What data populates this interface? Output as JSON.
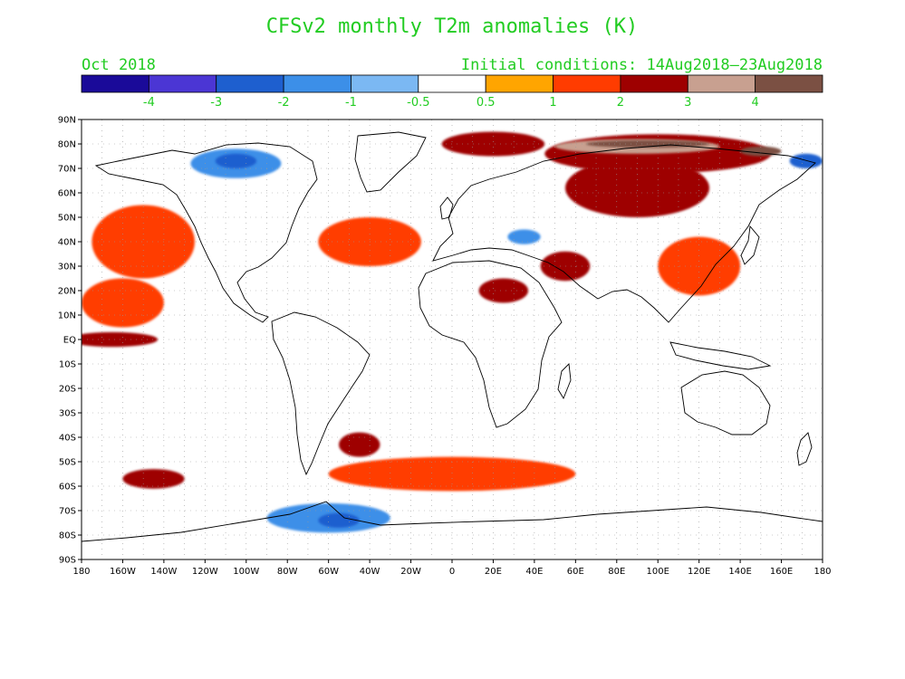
{
  "title": "CFSv2 monthly T2m anomalies (K)",
  "valid_month": "Oct 2018",
  "initial_conditions": "Initial conditions: 14Aug2018–23Aug2018",
  "colorbar": {
    "colors": [
      "#1a0a99",
      "#4b36d4",
      "#1e5fcf",
      "#3c8fe8",
      "#7bb8f3",
      "#ffffff",
      "#ffa500",
      "#ff3c00",
      "#9e0000",
      "#c8a090",
      "#7b5043"
    ],
    "labels": [
      "-4",
      "-3",
      "-2",
      "-1",
      "-0.5",
      "0.5",
      "1",
      "2",
      "3",
      "4"
    ]
  },
  "map": {
    "lat_labels": [
      "90N",
      "80N",
      "70N",
      "60N",
      "50N",
      "40N",
      "30N",
      "20N",
      "10N",
      "EQ",
      "10S",
      "20S",
      "30S",
      "40S",
      "50S",
      "60S",
      "70S",
      "80S",
      "90S"
    ],
    "lon_labels": [
      "180",
      "160W",
      "140W",
      "120W",
      "100W",
      "80W",
      "60W",
      "40W",
      "20W",
      "0",
      "20E",
      "40E",
      "60E",
      "80E",
      "100E",
      "120E",
      "140E",
      "160E",
      "180"
    ]
  },
  "anomaly_regions": [
    {
      "name": "siberia-arctic-warm",
      "level": "2",
      "lon": 100,
      "lat": 76,
      "rlon": 55,
      "rlat": 8
    },
    {
      "name": "arctic-strong-warm",
      "level": "3",
      "lon": 90,
      "lat": 79,
      "rlon": 40,
      "rlat": 3
    },
    {
      "name": "arctic-very-strong-warm",
      "level": "4",
      "lon": 95,
      "lat": 80,
      "rlon": 30,
      "rlat": 1.5
    },
    {
      "name": "east-siberia-very-strong-warm",
      "level": "4",
      "lon": 150,
      "lat": 77,
      "rlon": 10,
      "rlat": 2
    },
    {
      "name": "west-arctic-warm",
      "level": "2",
      "lon": 20,
      "lat": 80,
      "rlon": 25,
      "rlat": 5
    },
    {
      "name": "russia-warm",
      "level": "2",
      "lon": 90,
      "lat": 62,
      "rlon": 35,
      "rlat": 12
    },
    {
      "name": "canada-arctic-cold",
      "level": "-1",
      "lon": -105,
      "lat": 72,
      "rlon": 22,
      "rlat": 6
    },
    {
      "name": "canada-arctic-colder",
      "level": "-2",
      "lon": -105,
      "lat": 73,
      "rlon": 10,
      "rlat": 3
    },
    {
      "name": "bering-cold",
      "level": "-2",
      "lon": 172,
      "lat": 73,
      "rlon": 8,
      "rlat": 3
    },
    {
      "name": "black-sea-cold",
      "level": "-1",
      "lon": 35,
      "lat": 42,
      "rlon": 8,
      "rlat": 3
    },
    {
      "name": "west-pacific-eq-warm",
      "level": "2",
      "lon": -165,
      "lat": 0,
      "rlon": 22,
      "rlat": 3
    },
    {
      "name": "sahara-warm",
      "level": "2",
      "lon": 25,
      "lat": 20,
      "rlon": 12,
      "rlat": 5
    },
    {
      "name": "middle-east-warm",
      "level": "2",
      "lon": 55,
      "lat": 30,
      "rlon": 12,
      "rlat": 6
    },
    {
      "name": "south-atlantic-warm",
      "level": "2",
      "lon": -45,
      "lat": -43,
      "rlon": 10,
      "rlat": 5
    },
    {
      "name": "south-pacific-warm",
      "level": "2",
      "lon": -145,
      "lat": -57,
      "rlon": 15,
      "rlat": 4
    },
    {
      "name": "antarctic-cold",
      "level": "-1",
      "lon": -60,
      "lat": -73,
      "rlon": 30,
      "rlat": 6
    },
    {
      "name": "antarctic-colder",
      "level": "-2",
      "lon": -55,
      "lat": -74,
      "rlon": 10,
      "rlat": 3
    },
    {
      "name": "southern-ocean-warm",
      "level": "1",
      "lon": 0,
      "lat": -55,
      "rlon": 60,
      "rlat": 7
    },
    {
      "name": "north-pacific-warm",
      "level": "1",
      "lon": -150,
      "lat": 40,
      "rlon": 25,
      "rlat": 15
    },
    {
      "name": "north-atlantic-warm",
      "level": "1",
      "lon": -40,
      "lat": 40,
      "rlon": 25,
      "rlat": 10
    },
    {
      "name": "east-asia-warm",
      "level": "1",
      "lon": 120,
      "lat": 30,
      "rlon": 20,
      "rlat": 12
    },
    {
      "name": "east-pacific-warm",
      "level": "1",
      "lon": -160,
      "lat": 15,
      "rlon": 20,
      "rlat": 10
    }
  ]
}
